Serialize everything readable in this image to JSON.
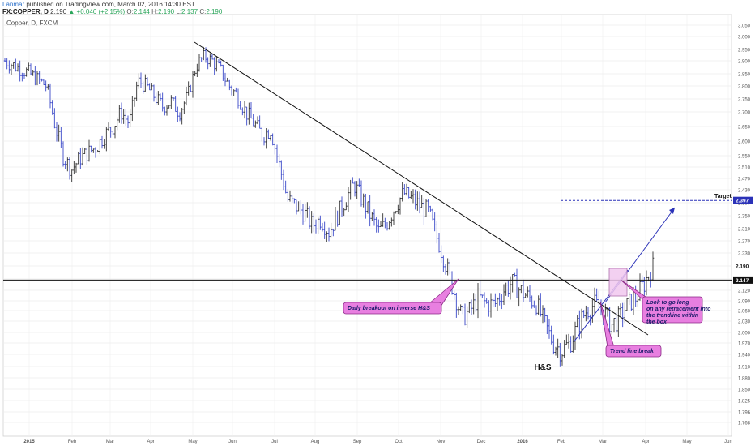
{
  "header": {
    "author": "Lanmar",
    "published": "published on TradingView.com, March 02, 2016 14:30 EST",
    "symbol": "FX:COPPER, D",
    "last": "2.190",
    "change": "▲ +0.046 (+2.15%)",
    "open_label": "O:",
    "open": "2.144",
    "high_label": "H:",
    "high": "2.190",
    "low_label": "L:",
    "low": "2.137",
    "close_label": "C:",
    "close": "2.190"
  },
  "chart_data": {
    "type": "candlestick",
    "title": "Copper, D, FXCM",
    "ylim": [
      1.76,
      3.08
    ],
    "y_ticks": [
      "3.050",
      "3.000",
      "2.950",
      "2.900",
      "2.850",
      "2.800",
      "2.750",
      "2.700",
      "2.650",
      "2.600",
      "2.550",
      "2.510",
      "2.470",
      "2.430",
      "2.390",
      "2.350",
      "2.310",
      "2.270",
      "2.230",
      "2.190",
      "2.150",
      "2.120",
      "2.090",
      "2.060",
      "2.030",
      "2.000",
      "1.970",
      "1.940",
      "1.910",
      "1.880",
      "1.850",
      "1.825",
      "1.796",
      "1.768"
    ],
    "x_ticks": [
      "2015",
      "Feb",
      "Mar",
      "Apr",
      "May",
      "Jun",
      "Jul",
      "Aug",
      "Sep",
      "Oct",
      "Nov",
      "Dec",
      "2016",
      "Feb",
      "Mar",
      "Apr",
      "May",
      "Jun"
    ],
    "price_path": [
      [
        0,
        2.9
      ],
      [
        3,
        2.85
      ],
      [
        5,
        2.8
      ],
      [
        6,
        2.66
      ],
      [
        7,
        2.55
      ],
      [
        8,
        2.5
      ],
      [
        9,
        2.54
      ],
      [
        10,
        2.56
      ],
      [
        11,
        2.58
      ],
      [
        12,
        2.62
      ],
      [
        13,
        2.65
      ],
      [
        14,
        2.7
      ],
      [
        15,
        2.66
      ],
      [
        16,
        2.82
      ],
      [
        17,
        2.8
      ],
      [
        18,
        2.76
      ],
      [
        19,
        2.72
      ],
      [
        20,
        2.74
      ],
      [
        21,
        2.7
      ],
      [
        22,
        2.76
      ],
      [
        23,
        2.88
      ],
      [
        24,
        2.92
      ],
      [
        25,
        2.9
      ],
      [
        26,
        2.86
      ],
      [
        27,
        2.8
      ],
      [
        28,
        2.76
      ],
      [
        29,
        2.7
      ],
      [
        30,
        2.66
      ],
      [
        31,
        2.62
      ],
      [
        32,
        2.64
      ],
      [
        33,
        2.52
      ],
      [
        34,
        2.4
      ],
      [
        35,
        2.38
      ],
      [
        36,
        2.36
      ],
      [
        37,
        2.32
      ],
      [
        38,
        2.34
      ],
      [
        39,
        2.3
      ],
      [
        40,
        2.35
      ],
      [
        41,
        2.4
      ],
      [
        42,
        2.45
      ],
      [
        43,
        2.4
      ],
      [
        44,
        2.35
      ],
      [
        45,
        2.3
      ],
      [
        46,
        2.33
      ],
      [
        47,
        2.38
      ],
      [
        48,
        2.42
      ],
      [
        49,
        2.4
      ],
      [
        50,
        2.38
      ],
      [
        51,
        2.36
      ],
      [
        52,
        2.28
      ],
      [
        53,
        2.2
      ],
      [
        54,
        2.12
      ],
      [
        55,
        2.04
      ],
      [
        56,
        2.06
      ],
      [
        57,
        2.1
      ],
      [
        58,
        2.08
      ],
      [
        59,
        2.08
      ],
      [
        60,
        2.12
      ],
      [
        61,
        2.14
      ],
      [
        62,
        2.12
      ],
      [
        63,
        2.1
      ],
      [
        64,
        2.08
      ],
      [
        65,
        2.02
      ],
      [
        66,
        1.97
      ],
      [
        67,
        1.95
      ],
      [
        68,
        1.97
      ],
      [
        69,
        2.02
      ],
      [
        70,
        2.06
      ],
      [
        71,
        2.08
      ],
      [
        72,
        2.06
      ],
      [
        73,
        2.02
      ],
      [
        74,
        2.04
      ],
      [
        75,
        2.08
      ],
      [
        76,
        2.1
      ],
      [
        77,
        2.14
      ],
      [
        78,
        2.19
      ]
    ],
    "horizontal_level": 2.147,
    "horizontal_level_label": "2.147",
    "target_level": 2.397,
    "target_level_label": "2.397",
    "target_text": "Target",
    "last_price_label": "2.190",
    "annotations": {
      "breakout": "Daily breakout on inverse H&S",
      "retracement": "Look to go long on any retracement into the trendline within the box",
      "trendbreak": "Trend line break",
      "pattern": "H&S"
    },
    "colors": {
      "up": "#333333",
      "down": "#3a48c8",
      "annotation_fill": "#e87fe0",
      "annotation_border": "#8a2a86",
      "target_line": "#2b32b8",
      "box_fill": "#f2c8ef"
    }
  }
}
